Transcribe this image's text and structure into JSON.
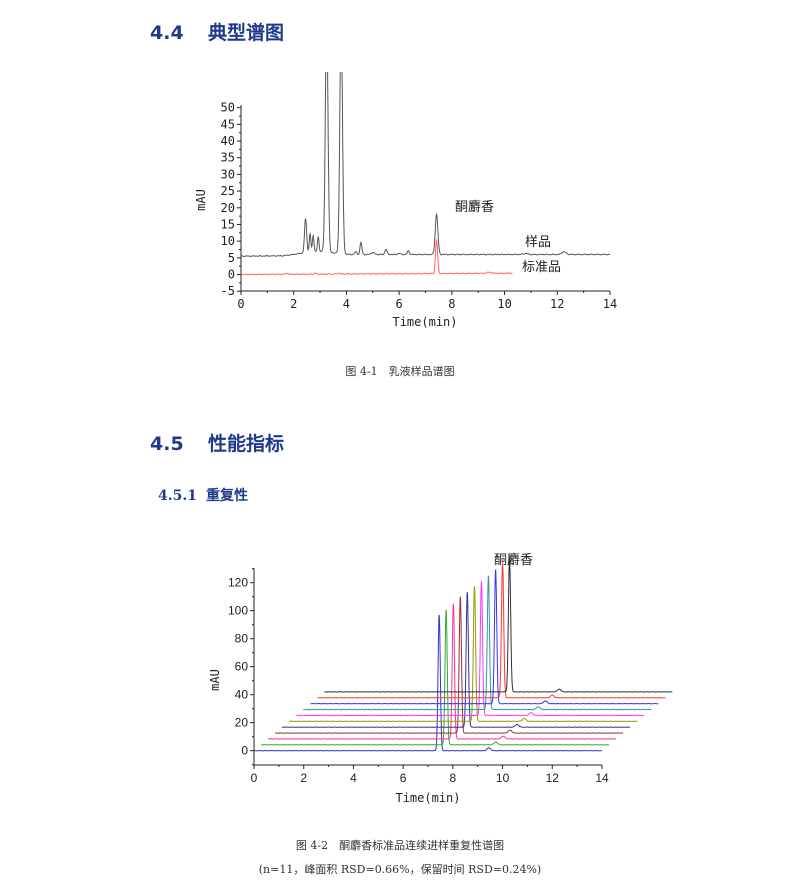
{
  "section_4_4": {
    "number": "4.4",
    "title": "典型谱图"
  },
  "figure_4_1": {
    "caption": "图 4-1　乳液样品谱图"
  },
  "section_4_5": {
    "number": "4.5",
    "title": "性能指标"
  },
  "section_4_5_1": {
    "number": "4.5.1",
    "title": "重复性"
  },
  "figure_4_2": {
    "caption": "图 4-2　酮麝香标准品连续进样重复性谱图",
    "subcaption": "(n=11，峰面积 RSD=0.66%，保留时间 RSD=0.24%)"
  },
  "chart_data": [
    {
      "type": "line",
      "xlabel": "Time(min)",
      "ylabel": "mAU",
      "xlim": [
        0,
        14
      ],
      "ylim": [
        -5,
        50
      ],
      "xticks": [
        0,
        2,
        4,
        6,
        8,
        10,
        12,
        14
      ],
      "yticks": [
        -5,
        0,
        5,
        10,
        15,
        20,
        25,
        30,
        35,
        40,
        45,
        50
      ],
      "annotations": [
        {
          "text": "酮麝香",
          "x": 7.42
        }
      ],
      "series": [
        {
          "name": "样品",
          "color": "#555555",
          "x_range": [
            0,
            14
          ],
          "baseline": [
            [
              0,
              5.5
            ],
            [
              1.6,
              5.6
            ],
            [
              2.3,
              6.4
            ],
            [
              3.0,
              7.0
            ],
            [
              3.5,
              6.5
            ],
            [
              4.1,
              6.0
            ],
            [
              14,
              6.0
            ]
          ],
          "peaks": [
            [
              2.45,
              10.2,
              0.04
            ],
            [
              2.62,
              5.6,
              0.03
            ],
            [
              2.74,
              5,
              0.03
            ],
            [
              2.93,
              4.2,
              0.03
            ],
            [
              3.25,
              70,
              0.05
            ],
            [
              3.8,
              70,
              0.05
            ],
            [
              4.35,
              0.8,
              0.04
            ],
            [
              4.55,
              3.6,
              0.035
            ],
            [
              5.0,
              0.6,
              0.06
            ],
            [
              5.5,
              1.6,
              0.04
            ],
            [
              6.0,
              0.3,
              0.06
            ],
            [
              6.35,
              1.1,
              0.04
            ],
            [
              7.42,
              12,
              0.05
            ],
            [
              10.8,
              0.3,
              0.08
            ],
            [
              12.25,
              0.8,
              0.08
            ]
          ]
        },
        {
          "name": "标准品",
          "color": "#ff6666",
          "x_range": [
            0,
            10.3
          ],
          "baseline": [
            [
              0,
              0
            ],
            [
              10.3,
              0.4
            ]
          ],
          "peaks": [
            [
              1.75,
              0.3,
              0.04
            ],
            [
              2.8,
              0.3,
              0.04
            ],
            [
              3.7,
              0.3,
              0.04
            ],
            [
              7.42,
              10,
              0.04
            ],
            [
              9.4,
              0.3,
              0.08
            ]
          ]
        }
      ]
    },
    {
      "type": "line",
      "xlabel": "Time(min)",
      "ylabel": "mAU",
      "xlim": [
        0,
        14
      ],
      "ylim": [
        -10,
        130
      ],
      "xticks": [
        0,
        2,
        4,
        6,
        8,
        10,
        12,
        14
      ],
      "yticks": [
        0,
        20,
        40,
        60,
        80,
        100,
        120
      ],
      "annotations": [
        {
          "text": "酮麝香",
          "x": 10.3
        }
      ],
      "series": [
        {
          "color": "#3333cc",
          "x_range": [
            0,
            14
          ],
          "y_offset": 0,
          "peaks": [
            [
              7.45,
              97,
              0.045
            ],
            [
              9.45,
              2,
              0.07
            ]
          ]
        },
        {
          "color": "#33aa33",
          "x_range": [
            0.28,
            14.28
          ],
          "y_offset": 4.2,
          "peaks": [
            [
              7.73,
              96.5,
              0.045
            ],
            [
              9.73,
              2,
              0.07
            ]
          ]
        },
        {
          "color": "#ff3399",
          "x_range": [
            0.57,
            14.57
          ],
          "y_offset": 8.4,
          "peaks": [
            [
              8.02,
              96.8,
              0.045
            ],
            [
              10.02,
              2,
              0.07
            ]
          ]
        },
        {
          "color": "#993333",
          "x_range": [
            0.85,
            14.85
          ],
          "y_offset": 12.6,
          "peaks": [
            [
              8.3,
              97.5,
              0.045
            ],
            [
              10.3,
              2,
              0.07
            ]
          ]
        },
        {
          "color": "#333399",
          "x_range": [
            1.13,
            15.13
          ],
          "y_offset": 16.8,
          "peaks": [
            [
              8.58,
              96.5,
              0.045
            ],
            [
              10.58,
              2,
              0.07
            ]
          ]
        },
        {
          "color": "#999900",
          "x_range": [
            1.42,
            15.42
          ],
          "y_offset": 21,
          "peaks": [
            [
              8.87,
              96.5,
              0.045
            ],
            [
              10.87,
              2,
              0.07
            ]
          ]
        },
        {
          "color": "#ff33ff",
          "x_range": [
            1.7,
            15.7
          ],
          "y_offset": 25.2,
          "peaks": [
            [
              9.15,
              95.8,
              0.045
            ],
            [
              11.15,
              2,
              0.07
            ]
          ]
        },
        {
          "color": "#339999",
          "x_range": [
            1.98,
            15.98
          ],
          "y_offset": 29.4,
          "peaks": [
            [
              9.43,
              95.5,
              0.045
            ],
            [
              11.43,
              2,
              0.07
            ]
          ]
        },
        {
          "color": "#3333ff",
          "x_range": [
            2.27,
            16.27
          ],
          "y_offset": 33.6,
          "peaks": [
            [
              9.72,
              95.8,
              0.045
            ],
            [
              11.72,
              2,
              0.07
            ]
          ]
        },
        {
          "color": "#ff3333",
          "x_range": [
            2.55,
            16.55
          ],
          "y_offset": 37.8,
          "peaks": [
            [
              10.0,
              96,
              0.045
            ],
            [
              12.0,
              2,
              0.07
            ]
          ]
        },
        {
          "color": "#333333",
          "x_range": [
            2.83,
            16.83
          ],
          "y_offset": 42,
          "peaks": [
            [
              10.28,
              96,
              0.045
            ],
            [
              12.28,
              2,
              0.07
            ]
          ]
        }
      ]
    }
  ]
}
